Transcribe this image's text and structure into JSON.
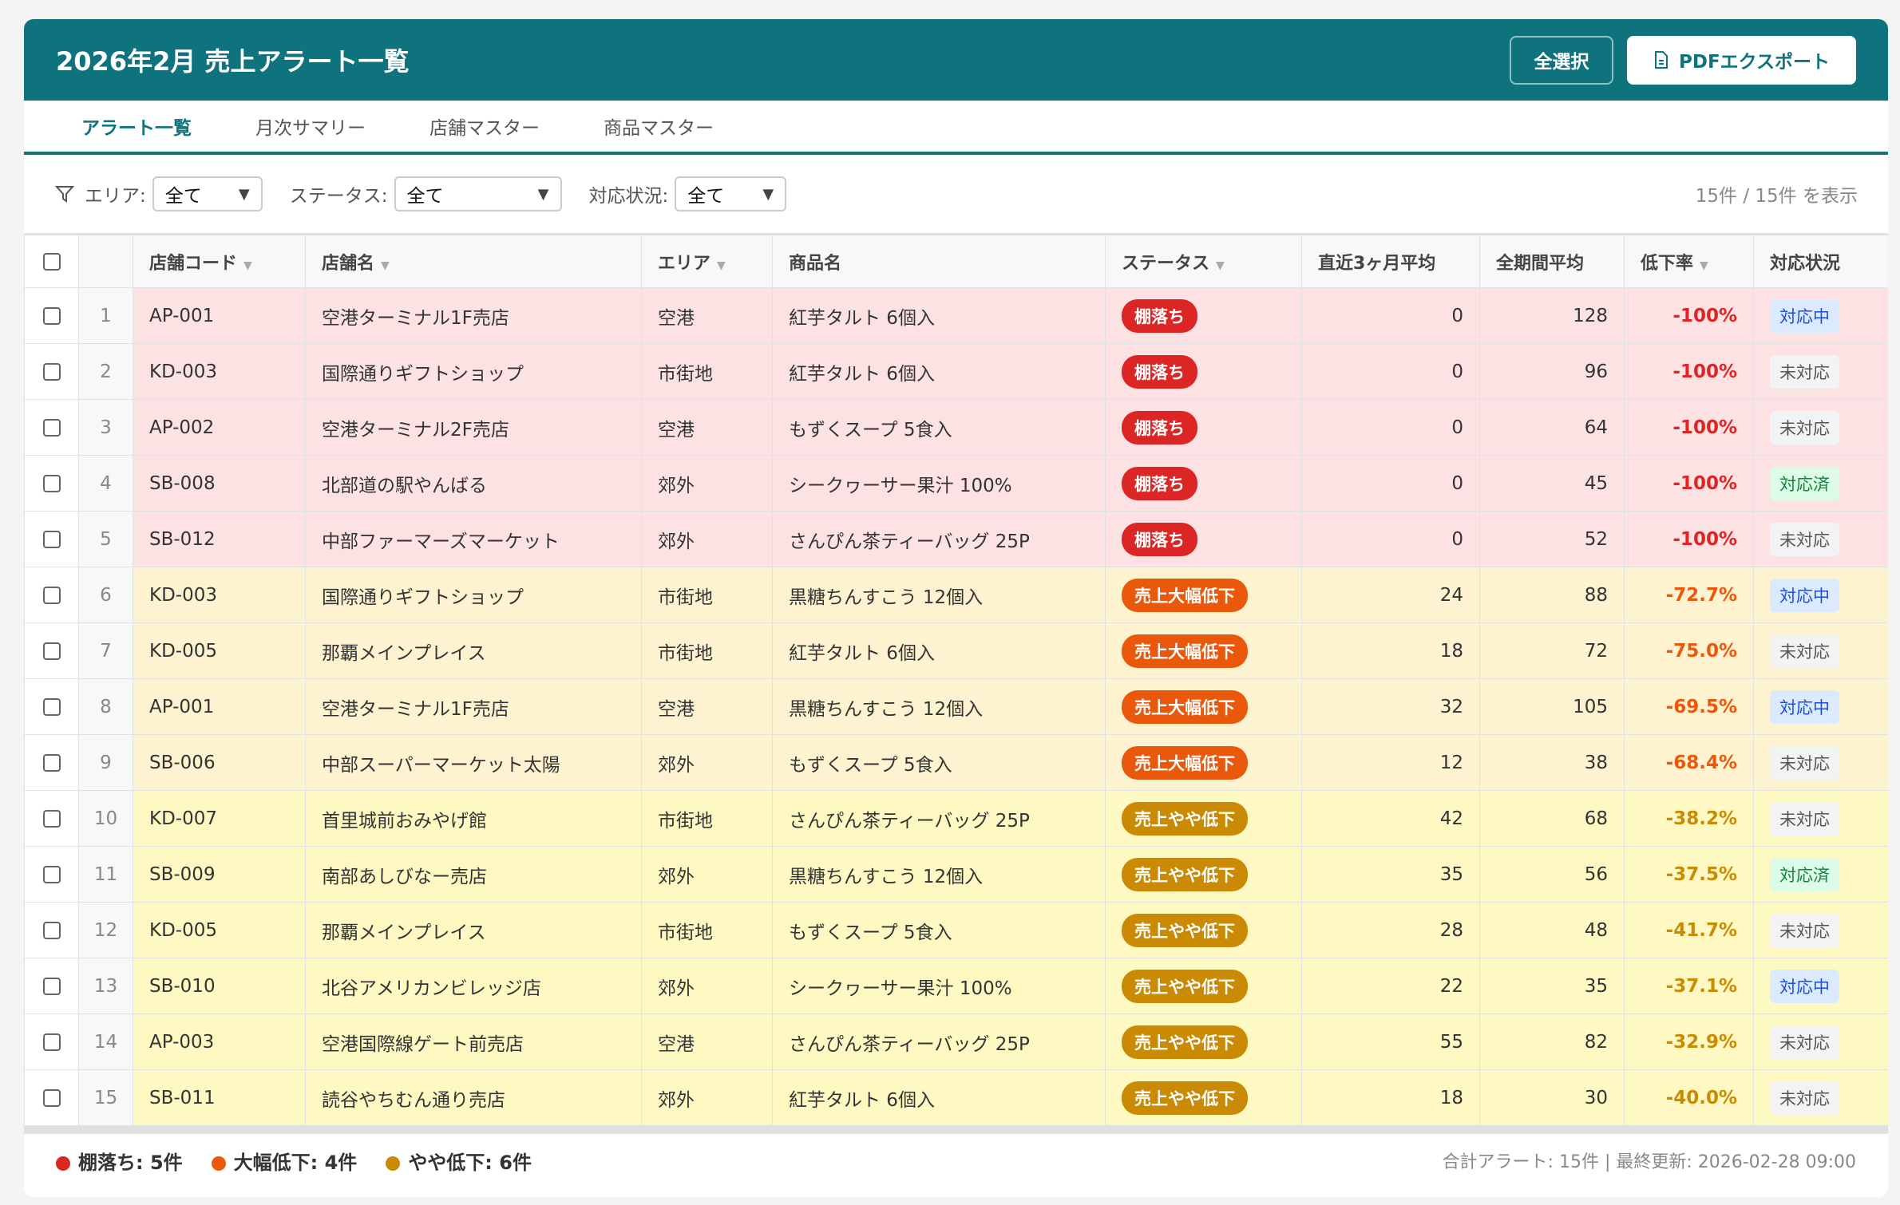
{
  "header": {
    "title": "2026年2月 売上アラート一覧",
    "select_all": "全選択",
    "pdf_export": "PDFエクスポート"
  },
  "tabs": [
    {
      "label": "アラート一覧",
      "active": true
    },
    {
      "label": "月次サマリー"
    },
    {
      "label": "店舗マスター"
    },
    {
      "label": "商品マスター"
    }
  ],
  "filters": {
    "area_label": "エリア:",
    "area_value": "全て",
    "status_label": "ステータス:",
    "status_value": "全て",
    "response_label": "対応状況:",
    "response_value": "全て",
    "count": "15件 / 15件 を表示"
  },
  "columns": [
    "店舗コード",
    "店舗名",
    "エリア",
    "商品名",
    "ステータス",
    "直近3ヶ月平均",
    "全期間平均",
    "低下率",
    "対応状況"
  ],
  "colors": {
    "stockout": "#dc2626",
    "big_drop": "#ea580c",
    "slight_drop": "#ca8a04",
    "teal": "#0f737d"
  },
  "rows": [
    {
      "no": "1",
      "code": "AP-001",
      "store": "空港ターミナル1F売店",
      "area": "空港",
      "product": "紅芋タルト 6個入",
      "status": "棚落ち",
      "level": "red",
      "recent": "0",
      "all": "128",
      "rate": "-100%",
      "response": "対応中"
    },
    {
      "no": "2",
      "code": "KD-003",
      "store": "国際通りギフトショップ",
      "area": "市街地",
      "product": "紅芋タルト 6個入",
      "status": "棚落ち",
      "level": "red",
      "recent": "0",
      "all": "96",
      "rate": "-100%",
      "response": "未対応"
    },
    {
      "no": "3",
      "code": "AP-002",
      "store": "空港ターミナル2F売店",
      "area": "空港",
      "product": "もずくスープ 5食入",
      "status": "棚落ち",
      "level": "red",
      "recent": "0",
      "all": "64",
      "rate": "-100%",
      "response": "未対応"
    },
    {
      "no": "4",
      "code": "SB-008",
      "store": "北部道の駅やんばる",
      "area": "郊外",
      "product": "シークヮーサー果汁 100%",
      "status": "棚落ち",
      "level": "red",
      "recent": "0",
      "all": "45",
      "rate": "-100%",
      "response": "対応済"
    },
    {
      "no": "5",
      "code": "SB-012",
      "store": "中部ファーマーズマーケット",
      "area": "郊外",
      "product": "さんぴん茶ティーバッグ 25P",
      "status": "棚落ち",
      "level": "red",
      "recent": "0",
      "all": "52",
      "rate": "-100%",
      "response": "未対応"
    },
    {
      "no": "6",
      "code": "KD-003",
      "store": "国際通りギフトショップ",
      "area": "市街地",
      "product": "黒糖ちんすこう 12個入",
      "status": "売上大幅低下",
      "level": "orange",
      "recent": "24",
      "all": "88",
      "rate": "-72.7%",
      "response": "対応中"
    },
    {
      "no": "7",
      "code": "KD-005",
      "store": "那覇メインプレイス",
      "area": "市街地",
      "product": "紅芋タルト 6個入",
      "status": "売上大幅低下",
      "level": "orange",
      "recent": "18",
      "all": "72",
      "rate": "-75.0%",
      "response": "未対応"
    },
    {
      "no": "8",
      "code": "AP-001",
      "store": "空港ターミナル1F売店",
      "area": "空港",
      "product": "黒糖ちんすこう 12個入",
      "status": "売上大幅低下",
      "level": "orange",
      "recent": "32",
      "all": "105",
      "rate": "-69.5%",
      "response": "対応中"
    },
    {
      "no": "9",
      "code": "SB-006",
      "store": "中部スーパーマーケット太陽",
      "area": "郊外",
      "product": "もずくスープ 5食入",
      "status": "売上大幅低下",
      "level": "orange",
      "recent": "12",
      "all": "38",
      "rate": "-68.4%",
      "response": "未対応"
    },
    {
      "no": "10",
      "code": "KD-007",
      "store": "首里城前おみやげ館",
      "area": "市街地",
      "product": "さんぴん茶ティーバッグ 25P",
      "status": "売上やや低下",
      "level": "yellow",
      "recent": "42",
      "all": "68",
      "rate": "-38.2%",
      "response": "未対応"
    },
    {
      "no": "11",
      "code": "SB-009",
      "store": "南部あしびなー売店",
      "area": "郊外",
      "product": "黒糖ちんすこう 12個入",
      "status": "売上やや低下",
      "level": "yellow",
      "recent": "35",
      "all": "56",
      "rate": "-37.5%",
      "response": "対応済"
    },
    {
      "no": "12",
      "code": "KD-005",
      "store": "那覇メインプレイス",
      "area": "市街地",
      "product": "もずくスープ 5食入",
      "status": "売上やや低下",
      "level": "yellow",
      "recent": "28",
      "all": "48",
      "rate": "-41.7%",
      "response": "未対応"
    },
    {
      "no": "13",
      "code": "SB-010",
      "store": "北谷アメリカンビレッジ店",
      "area": "郊外",
      "product": "シークヮーサー果汁 100%",
      "status": "売上やや低下",
      "level": "yellow",
      "recent": "22",
      "all": "35",
      "rate": "-37.1%",
      "response": "対応中"
    },
    {
      "no": "14",
      "code": "AP-003",
      "store": "空港国際線ゲート前売店",
      "area": "空港",
      "product": "さんぴん茶ティーバッグ 25P",
      "status": "売上やや低下",
      "level": "yellow",
      "recent": "55",
      "all": "82",
      "rate": "-32.9%",
      "response": "未対応"
    },
    {
      "no": "15",
      "code": "SB-011",
      "store": "読谷やちむん通り売店",
      "area": "郊外",
      "product": "紅芋タルト 6個入",
      "status": "売上やや低下",
      "level": "yellow",
      "recent": "18",
      "all": "30",
      "rate": "-40.0%",
      "response": "未対応"
    }
  ],
  "footer": {
    "legend": [
      {
        "label": "棚落ち: 5件",
        "color": "#dc2626"
      },
      {
        "label": "大幅低下: 4件",
        "color": "#ea580c"
      },
      {
        "label": "やや低下: 6件",
        "color": "#ca8a04"
      }
    ],
    "meta": "合計アラート: 15件 | 最終更新: 2026-02-28 09:00"
  }
}
